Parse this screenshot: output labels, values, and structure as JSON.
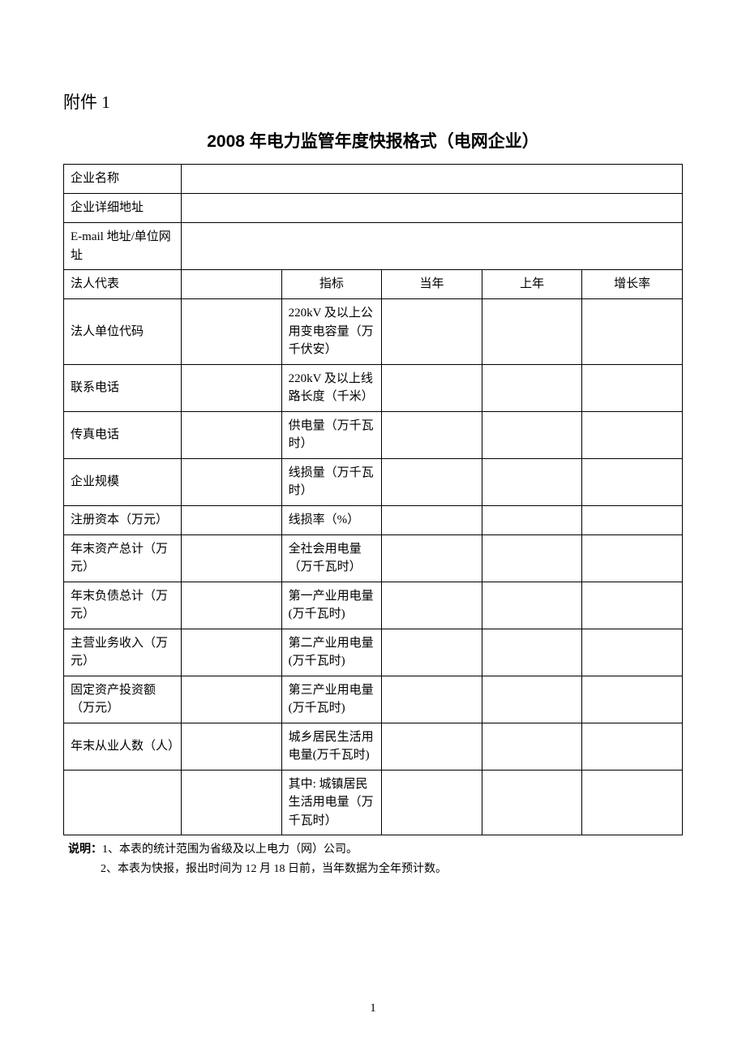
{
  "attachment_label": "附件 1",
  "title": "2008 年电力监管年度快报格式（电网企业）",
  "left_labels": {
    "r0": "企业名称",
    "r1": "企业详细地址",
    "r2": "E-mail 地址/单位网址",
    "r3": "法人代表",
    "r4": "法人单位代码",
    "r5": "联系电话",
    "r6": "传真电话",
    "r7": "企业规模",
    "r8": "注册资本（万元）",
    "r9": "年末资产总计（万元）",
    "r10": "年末负债总计（万元）",
    "r11": "主营业务收入（万元）",
    "r12": "固定资产投资额（万元）",
    "r13": "年末从业人数（人）",
    "r14": ""
  },
  "left_values": {
    "r3": "",
    "r4": "",
    "r5": "",
    "r6": "",
    "r7": "",
    "r8": "",
    "r9": "",
    "r10": "",
    "r11": "",
    "r12": "",
    "r13": "",
    "r14": ""
  },
  "header": {
    "indicator": "指标",
    "current_year": "当年",
    "prev_year": "上年",
    "growth_rate": "增长率"
  },
  "indicators": {
    "i0": "220kV 及以上公用变电容量（万千伏安）",
    "i1": "220kV 及以上线路长度（千米）",
    "i2": "供电量（万千瓦时）",
    "i3": "线损量（万千瓦时）",
    "i4": "线损率（%）",
    "i5": "全社会用电量（万千瓦时）",
    "i6": "第一产业用电量(万千瓦时)",
    "i7": "第二产业用电量(万千瓦时)",
    "i8": "第三产业用电量(万千瓦时)",
    "i9": "城乡居民生活用电量(万千瓦时)",
    "i10": "其中: 城镇居民生活用电量（万千瓦时）"
  },
  "data_cells": {
    "d0_cy": "",
    "d0_py": "",
    "d0_gr": "",
    "d1_cy": "",
    "d1_py": "",
    "d1_gr": "",
    "d2_cy": "",
    "d2_py": "",
    "d2_gr": "",
    "d3_cy": "",
    "d3_py": "",
    "d3_gr": "",
    "d4_cy": "",
    "d4_py": "",
    "d4_gr": "",
    "d5_cy": "",
    "d5_py": "",
    "d5_gr": "",
    "d6_cy": "",
    "d6_py": "",
    "d6_gr": "",
    "d7_cy": "",
    "d7_py": "",
    "d7_gr": "",
    "d8_cy": "",
    "d8_py": "",
    "d8_gr": "",
    "d9_cy": "",
    "d9_py": "",
    "d9_gr": "",
    "d10_cy": "",
    "d10_py": "",
    "d10_gr": ""
  },
  "top_values": {
    "r0": "",
    "r1": "",
    "r2": ""
  },
  "notes": {
    "label": "说明：",
    "n1": "1、本表的统计范围为省级及以上电力（网）公司。",
    "n2": "2、本表为快报，报出时间为 12 月 18 日前，当年数据为全年预计数。"
  },
  "page_number": "1"
}
